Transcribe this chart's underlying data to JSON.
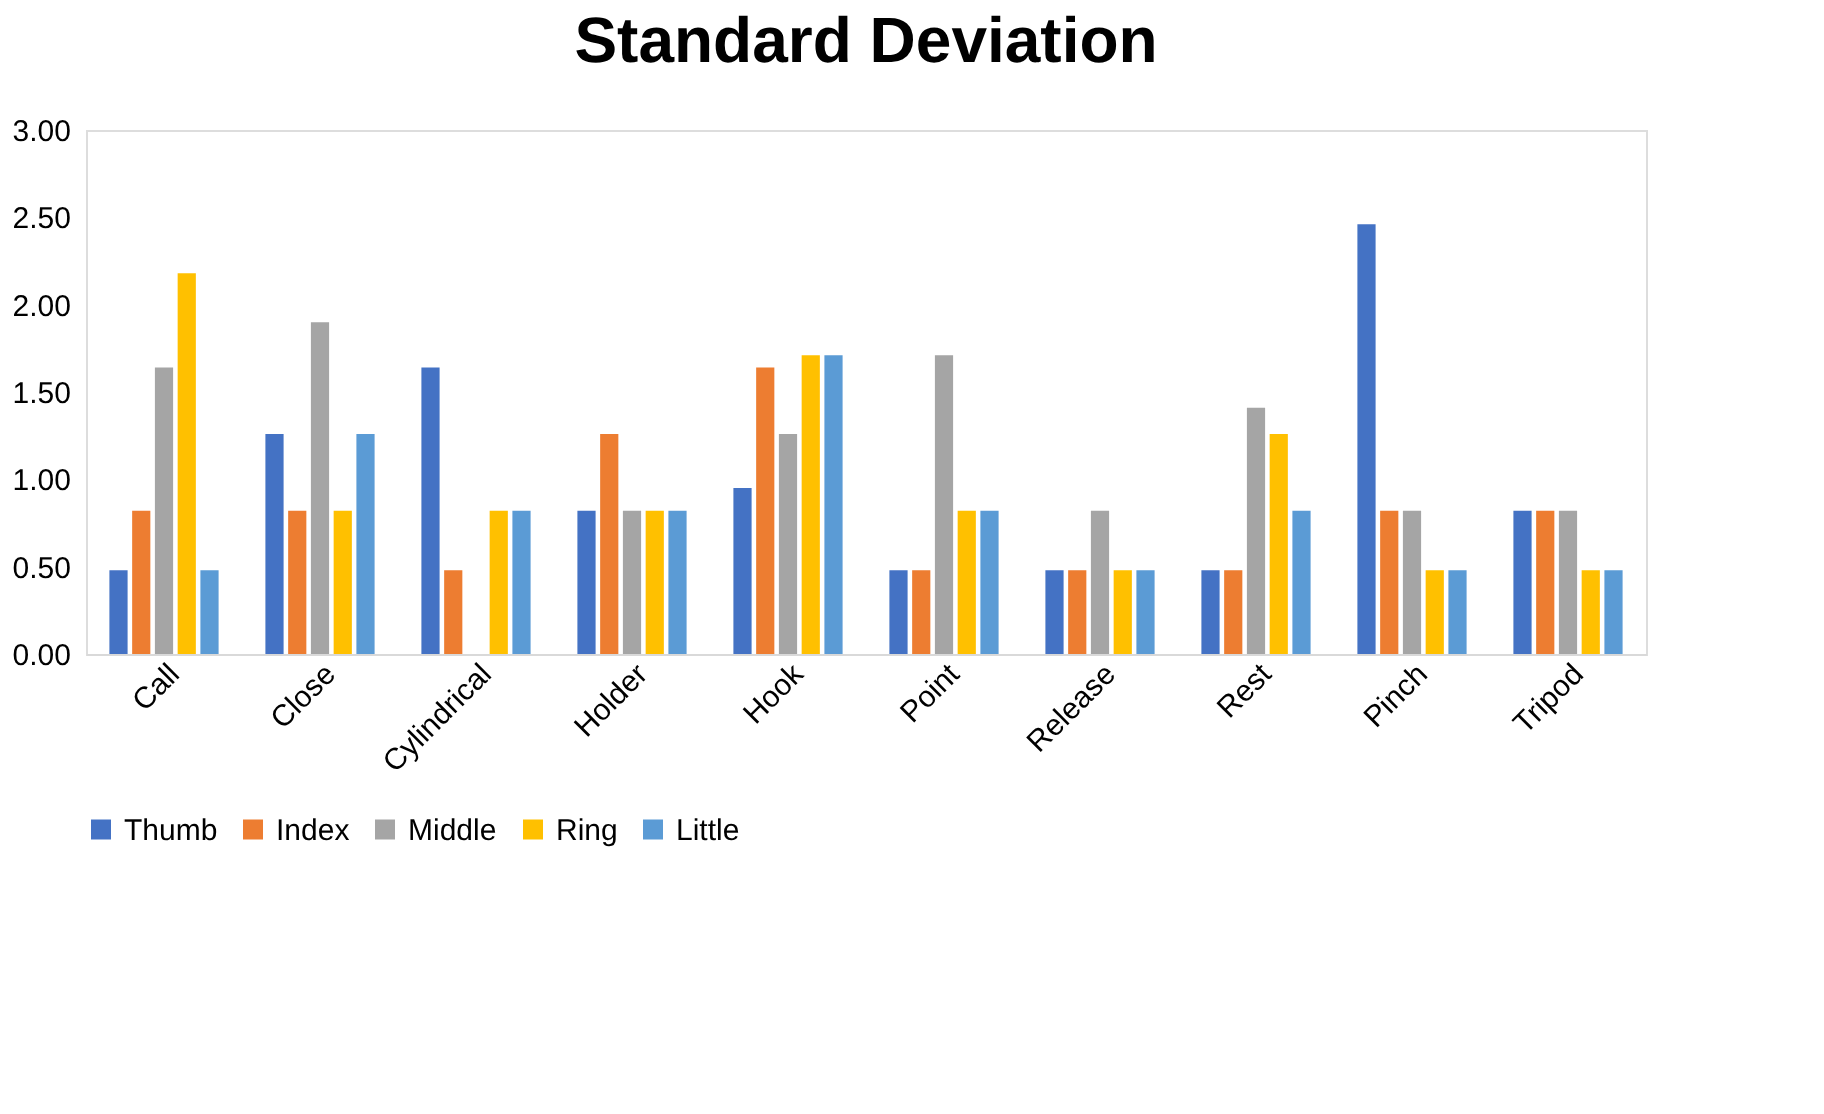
{
  "chart_data": {
    "type": "bar",
    "title": "Standard Deviation",
    "categories": [
      "Call",
      "Close",
      "Cylindrical",
      "Holder",
      "Hook",
      "Point",
      "Release",
      "Rest",
      "Pinch",
      "Tripod"
    ],
    "series": [
      {
        "name": "Thumb",
        "color": "#4472c4",
        "values": [
          0.48,
          1.26,
          1.64,
          0.82,
          0.95,
          0.48,
          0.48,
          0.48,
          2.46,
          0.82
        ]
      },
      {
        "name": "Index",
        "color": "#ed7d31",
        "values": [
          0.82,
          0.82,
          0.48,
          1.26,
          1.64,
          0.48,
          0.48,
          0.48,
          0.82,
          0.82
        ]
      },
      {
        "name": "Middle",
        "color": "#a5a5a5",
        "values": [
          1.64,
          1.9,
          0,
          0.82,
          1.26,
          1.71,
          0.82,
          1.41,
          0.82,
          0.82
        ]
      },
      {
        "name": "Ring",
        "color": "#ffc000",
        "values": [
          2.18,
          0.82,
          0.82,
          0.82,
          1.71,
          0.82,
          0.48,
          1.26,
          0.48,
          0.48
        ]
      },
      {
        "name": "Little",
        "color": "#5b9bd5",
        "values": [
          0.48,
          1.26,
          0.82,
          0.82,
          1.71,
          0.82,
          0.48,
          0.82,
          0.48,
          0.48
        ]
      }
    ],
    "ylim": [
      0,
      3
    ],
    "yticks": [
      {
        "value": 0,
        "label": "0.00"
      },
      {
        "value": 0.5,
        "label": "0.50"
      },
      {
        "value": 1,
        "label": "1.00"
      },
      {
        "value": 1.5,
        "label": "1.50"
      },
      {
        "value": 2,
        "label": "2.00"
      },
      {
        "value": 2.5,
        "label": "2.50"
      },
      {
        "value": 3,
        "label": "3.00"
      }
    ],
    "grid": false,
    "legend": "bottom"
  }
}
